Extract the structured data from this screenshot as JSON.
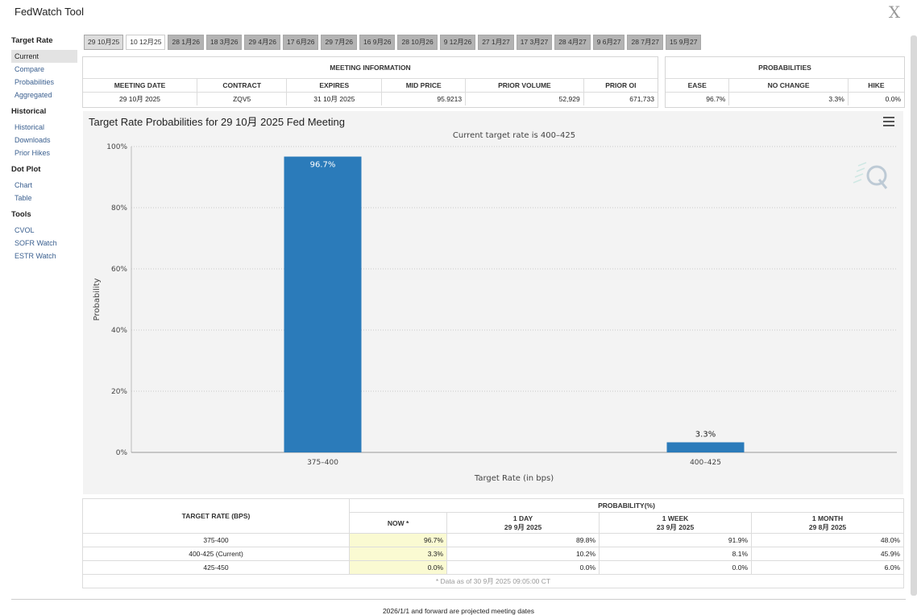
{
  "app": {
    "title": "FedWatch Tool",
    "close_label": "X"
  },
  "sidebar": {
    "groups": [
      {
        "heading": "Target Rate",
        "items": [
          "Current",
          "Compare",
          "Probabilities",
          "Aggregated"
        ]
      },
      {
        "heading": "Historical",
        "items": [
          "Historical",
          "Downloads",
          "Prior Hikes"
        ]
      },
      {
        "heading": "Dot Plot",
        "items": [
          "Chart",
          "Table"
        ]
      },
      {
        "heading": "Tools",
        "items": [
          "CVOL",
          "SOFR Watch",
          "ESTR Watch"
        ]
      }
    ],
    "active": "Current"
  },
  "tabs": [
    "29 10月25",
    "10 12月25",
    "28 1月26",
    "18 3月26",
    "29 4月26",
    "17 6月26",
    "29 7月26",
    "16 9月26",
    "28 10月26",
    "9 12月26",
    "27 1月27",
    "17 3月27",
    "28 4月27",
    "9 6月27",
    "28 7月27",
    "15 9月27"
  ],
  "meeting_info": {
    "section_title": "MEETING INFORMATION",
    "headers": [
      "MEETING DATE",
      "CONTRACT",
      "EXPIRES",
      "MID PRICE",
      "PRIOR VOLUME",
      "PRIOR OI"
    ],
    "values": [
      "29 10月 2025",
      "ZQV5",
      "31 10月 2025",
      "95.9213",
      "52,929",
      "671,733"
    ]
  },
  "probabilities": {
    "section_title": "PROBABILITIES",
    "headers": [
      "EASE",
      "NO CHANGE",
      "HIKE"
    ],
    "values": [
      "96.7%",
      "3.3%",
      "0.0%"
    ]
  },
  "chart_data": {
    "type": "bar",
    "title": "Target Rate Probabilities for 29 10月 2025 Fed Meeting",
    "subtitle": "Current target rate is 400–425",
    "categories": [
      "375–400",
      "400–425"
    ],
    "values": [
      96.7,
      3.3
    ],
    "data_labels": [
      "96.7%",
      "3.3%"
    ],
    "xlabel": "Target Rate (in bps)",
    "ylabel": "Probability",
    "yticks": [
      "0%",
      "20%",
      "40%",
      "60%",
      "80%",
      "100%"
    ],
    "ylim": [
      0,
      100
    ],
    "color": "#2b7bba"
  },
  "prob_table": {
    "header_left": "TARGET RATE (BPS)",
    "header_right": "PROBABILITY(%)",
    "columns": [
      {
        "line1": "NOW *",
        "line2": ""
      },
      {
        "line1": "1 DAY",
        "line2": "29 9月 2025"
      },
      {
        "line1": "1 WEEK",
        "line2": "23 9月 2025"
      },
      {
        "line1": "1 MONTH",
        "line2": "29 8月 2025"
      }
    ],
    "rows": [
      {
        "rate": "375-400",
        "now": "96.7%",
        "day": "89.8%",
        "week": "91.9%",
        "month": "48.0%"
      },
      {
        "rate": "400-425 (Current)",
        "now": "3.3%",
        "day": "10.2%",
        "week": "8.1%",
        "month": "45.9%"
      },
      {
        "rate": "425-450",
        "now": "0.0%",
        "day": "0.0%",
        "week": "0.0%",
        "month": "6.0%"
      }
    ],
    "footnote": "* Data as of 30 9月 2025 09:05:00 CT"
  },
  "footer_note": "2026/1/1 and forward are projected meeting dates"
}
